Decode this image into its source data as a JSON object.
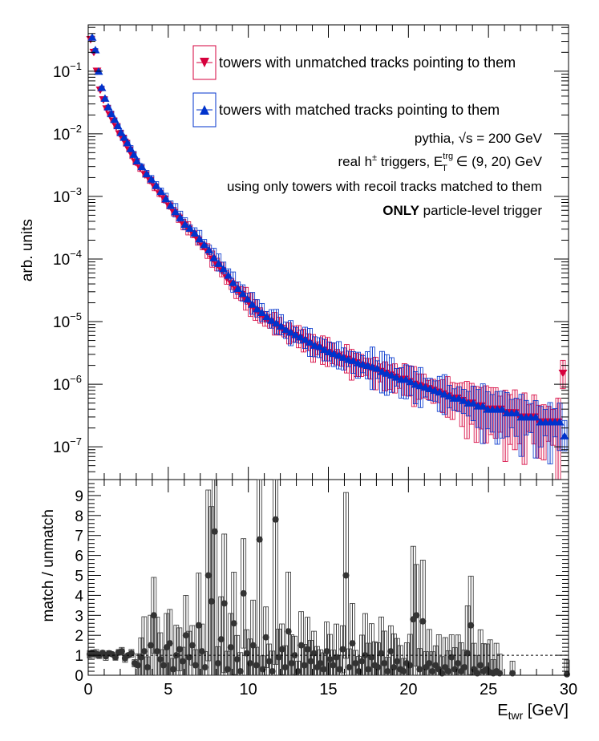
{
  "chart_data": [
    {
      "type": "scatter",
      "ylabel": "arb. units",
      "yscale": "log",
      "xlim": [
        0,
        30
      ],
      "ylim": [
        3e-08,
        0.55
      ],
      "ytick_labels": [
        {
          "base": "10",
          "exp": "−1",
          "value": 0.1
        },
        {
          "base": "10",
          "exp": "−2",
          "value": 0.01
        },
        {
          "base": "10",
          "exp": "−3",
          "value": 0.001
        },
        {
          "base": "10",
          "exp": "−4",
          "value": 0.0001
        },
        {
          "base": "10",
          "exp": "−5",
          "value": 1e-05
        },
        {
          "base": "10",
          "exp": "−6",
          "value": 1e-06
        },
        {
          "base": "10",
          "exp": "−7",
          "value": 1e-07
        }
      ],
      "legend": [
        {
          "label": "towers with unmatched tracks pointing to them",
          "color": "#d6003c",
          "marker": "triangle-down"
        },
        {
          "label": "towers with matched tracks pointing to them",
          "color": "#0033cc",
          "marker": "triangle-up"
        }
      ],
      "annotations": {
        "line1": "pythia, √s = 200 GeV",
        "line2_a": "real h",
        "line2_sup": "±",
        "line2_b": " triggers, E",
        "line2_sup2": "trg",
        "line2_sub": "T",
        "line2_c": " ∈ (9, 20) GeV",
        "line3": "using only towers with recoil tracks matched to them",
        "line4_bold": "ONLY",
        "line4_rest": " particle-level trigger"
      },
      "series": [
        {
          "name": "towers with unmatched tracks pointing to them",
          "color": "#d6003c",
          "marker": "triangle-down",
          "x": [
            0.2,
            0.4,
            0.6,
            0.8,
            1.0,
            1.2,
            1.4,
            1.6,
            1.8,
            2.0,
            2.2,
            2.4,
            2.6,
            2.8,
            3.0,
            3.3,
            3.6,
            3.9,
            4.2,
            4.5,
            4.8,
            5.1,
            5.4,
            5.7,
            6.0,
            6.3,
            6.6,
            6.9,
            7.2,
            7.5,
            7.8,
            8.1,
            8.4,
            8.7,
            9.0,
            9.3,
            9.6,
            9.9,
            10.2,
            10.5,
            10.8,
            11.1,
            11.4,
            11.7,
            12.0,
            12.3,
            12.6,
            12.9,
            13.2,
            13.5,
            13.8,
            14.1,
            14.4,
            14.7,
            15.0,
            15.3,
            15.6,
            15.9,
            16.2,
            16.5,
            16.8,
            17.1,
            17.4,
            17.7,
            18.0,
            18.3,
            18.6,
            18.9,
            19.2,
            19.5,
            19.8,
            20.1,
            20.4,
            20.7,
            21.0,
            21.3,
            21.6,
            21.9,
            22.2,
            22.5,
            22.8,
            23.1,
            23.4,
            23.7,
            24.0,
            24.3,
            24.6,
            24.9,
            25.2,
            25.5,
            25.8,
            26.1,
            26.4,
            26.7,
            27.0,
            27.3,
            27.6,
            27.9,
            28.2,
            28.5,
            28.8,
            29.1,
            29.4,
            29.7
          ],
          "y": [
            0.32,
            0.2,
            0.1,
            0.05,
            0.035,
            0.025,
            0.02,
            0.016,
            0.013,
            0.01,
            0.0085,
            0.007,
            0.0055,
            0.0045,
            0.0035,
            0.0028,
            0.0022,
            0.0018,
            0.0014,
            0.0011,
            0.0009,
            0.0007,
            0.00055,
            0.00045,
            0.00035,
            0.0003,
            0.00025,
            0.0002,
            0.00016,
            0.00013,
            0.0001,
            8e-05,
            6.5e-05,
            5e-05,
            4e-05,
            3.2e-05,
            2.7e-05,
            2.2e-05,
            1.8e-05,
            1.5e-05,
            1.3e-05,
            1.1e-05,
            1e-05,
            9e-06,
            8e-06,
            7e-06,
            6.5e-06,
            6e-06,
            5.5e-06,
            5e-06,
            4.5e-06,
            4e-06,
            3.8e-06,
            3.5e-06,
            3.2e-06,
            3e-06,
            2.8e-06,
            2.6e-06,
            2.5e-06,
            2.3e-06,
            2.2e-06,
            2e-06,
            1.9e-06,
            1.8e-06,
            1.7e-06,
            1.6e-06,
            1.5e-06,
            1.4e-06,
            1.3e-06,
            1.2e-06,
            1.2e-06,
            1.1e-06,
            1e-06,
            9.5e-07,
            9e-07,
            8.5e-07,
            8e-07,
            7.5e-07,
            7e-07,
            6.5e-07,
            6e-07,
            6e-07,
            5.5e-07,
            5e-07,
            5e-07,
            4.5e-07,
            4.5e-07,
            4e-07,
            4e-07,
            4e-07,
            4e-07,
            3.5e-07,
            3.5e-07,
            3.5e-07,
            3e-07,
            3e-07,
            3e-07,
            3e-07,
            2.5e-07,
            2.5e-07,
            2.5e-07,
            2.5e-07,
            2.5e-07,
            1.5e-06
          ]
        },
        {
          "name": "towers with matched tracks pointing to them",
          "color": "#0033cc",
          "marker": "triangle-up",
          "x": [
            0.2,
            0.4,
            0.6,
            0.8,
            1.0,
            1.2,
            1.4,
            1.6,
            1.8,
            2.0,
            2.2,
            2.4,
            2.6,
            2.8,
            3.0,
            3.3,
            3.6,
            3.9,
            4.2,
            4.5,
            4.8,
            5.1,
            5.4,
            5.7,
            6.0,
            6.3,
            6.6,
            6.9,
            7.2,
            7.5,
            7.8,
            8.1,
            8.4,
            8.7,
            9.0,
            9.3,
            9.6,
            9.9,
            10.2,
            10.5,
            10.8,
            11.1,
            11.4,
            11.7,
            12.0,
            12.3,
            12.6,
            12.9,
            13.2,
            13.5,
            13.8,
            14.1,
            14.4,
            14.7,
            15.0,
            15.3,
            15.6,
            15.9,
            16.2,
            16.5,
            16.8,
            17.1,
            17.4,
            17.7,
            18.0,
            18.3,
            18.6,
            18.9,
            19.2,
            19.5,
            19.8,
            20.1,
            20.4,
            20.7,
            21.0,
            21.3,
            21.6,
            21.9,
            22.2,
            22.5,
            22.8,
            23.1,
            23.4,
            23.7,
            24.0,
            24.3,
            24.6,
            24.9,
            25.2,
            25.5,
            25.8,
            26.1,
            26.4,
            26.7,
            27.0,
            27.3,
            27.6,
            27.9,
            28.2,
            28.5,
            28.8,
            29.1,
            29.4,
            29.7
          ],
          "y": [
            0.35,
            0.22,
            0.1,
            0.055,
            0.037,
            0.027,
            0.021,
            0.017,
            0.0135,
            0.0105,
            0.0088,
            0.0072,
            0.0058,
            0.0047,
            0.0037,
            0.003,
            0.0023,
            0.0019,
            0.0015,
            0.0012,
            0.00092,
            0.00072,
            0.00057,
            0.00046,
            0.00036,
            0.00031,
            0.00026,
            0.00021,
            0.00017,
            0.00014,
            0.000105,
            8.5e-05,
            7e-05,
            5.5e-05,
            4.2e-05,
            3.4e-05,
            2.8e-05,
            2.3e-05,
            1.9e-05,
            1.6e-05,
            1.4e-05,
            1.2e-05,
            1.05e-05,
            9.5e-06,
            8.5e-06,
            7.5e-06,
            6.8e-06,
            6.2e-06,
            5.7e-06,
            5.2e-06,
            4.7e-06,
            4.2e-06,
            4e-06,
            3.6e-06,
            3.3e-06,
            3.1e-06,
            2.9e-06,
            2.7e-06,
            2.5e-06,
            2.4e-06,
            2.2e-06,
            2.1e-06,
            2e-06,
            1.9e-06,
            1.8e-06,
            1.6e-06,
            1.5e-06,
            1.4e-06,
            1.3e-06,
            1.2e-06,
            1.2e-06,
            1.1e-06,
            1e-06,
            9.5e-07,
            9e-07,
            8.5e-07,
            8e-07,
            7.5e-07,
            7e-07,
            6.5e-07,
            6e-07,
            6e-07,
            5.5e-07,
            5e-07,
            5e-07,
            4.5e-07,
            4.5e-07,
            4e-07,
            4e-07,
            4e-07,
            4e-07,
            3.5e-07,
            3.5e-07,
            3.5e-07,
            3e-07,
            3e-07,
            3e-07,
            3e-07,
            2.5e-07,
            2.5e-07,
            2.5e-07,
            2.5e-07,
            2.5e-07,
            1.5e-07
          ]
        }
      ]
    },
    {
      "type": "scatter",
      "ylabel": "match / unmatch",
      "xlabel_main": "E",
      "xlabel_sub": "twr",
      "xlabel_unit": " [GeV]",
      "xlim": [
        0,
        30
      ],
      "ylim": [
        0,
        9.8
      ],
      "xticks": [
        "0",
        "5",
        "10",
        "15",
        "20",
        "25",
        "30"
      ],
      "yticks": [
        "0",
        "1",
        "2",
        "3",
        "4",
        "5",
        "6",
        "7",
        "8",
        "9"
      ],
      "reference_line": 1,
      "series": [
        {
          "color": "#333333",
          "marker": "circle",
          "x": [
            0.1,
            0.3,
            0.5,
            0.7,
            0.9,
            1.1,
            1.3,
            1.5,
            1.7,
            1.9,
            2.1,
            2.3,
            2.5,
            2.7,
            2.9,
            3.1,
            3.3,
            3.5,
            3.7,
            3.9,
            4.1,
            4.3,
            4.5,
            4.7,
            4.9,
            5.1,
            5.3,
            5.5,
            5.7,
            5.9,
            6.1,
            6.3,
            6.5,
            6.7,
            6.9,
            7.1,
            7.3,
            7.5,
            7.7,
            7.9,
            8.1,
            8.3,
            8.5,
            8.7,
            8.9,
            9.1,
            9.3,
            9.5,
            9.7,
            9.9,
            10.1,
            10.3,
            10.5,
            10.7,
            10.9,
            11.1,
            11.3,
            11.5,
            11.7,
            11.9,
            12.1,
            12.3,
            12.5,
            12.7,
            12.9,
            13.1,
            13.3,
            13.5,
            13.7,
            13.9,
            14.1,
            14.3,
            14.5,
            14.7,
            14.9,
            15.1,
            15.3,
            15.5,
            15.7,
            15.9,
            16.1,
            16.3,
            16.5,
            16.7,
            16.9,
            17.1,
            17.3,
            17.5,
            17.7,
            17.9,
            18.1,
            18.3,
            18.5,
            18.7,
            18.9,
            19.1,
            19.3,
            19.5,
            19.7,
            19.9,
            20.1,
            20.3,
            20.5,
            20.7,
            20.9,
            21.1,
            21.3,
            21.5,
            21.7,
            21.9,
            22.1,
            22.3,
            22.5,
            22.7,
            22.9,
            23.1,
            23.3,
            23.5,
            23.7,
            23.9,
            24.1,
            24.3,
            24.5,
            24.7,
            24.9,
            25.1,
            25.3,
            25.5,
            25.7,
            26.5,
            29.9
          ],
          "y": [
            1.05,
            1.1,
            1.08,
            1.0,
            1.12,
            0.95,
            1.1,
            1.05,
            0.9,
            1.15,
            1.2,
            0.85,
            1.0,
            1.1,
            0.6,
            0.5,
            0.9,
            1.2,
            0.4,
            1.5,
            3.0,
            1.2,
            0.8,
            0.5,
            1.4,
            1.6,
            0.3,
            1.0,
            1.3,
            0.7,
            2.0,
            0.9,
            1.5,
            0.5,
            2.5,
            1.2,
            0.4,
            5.0,
            3.7,
            7.2,
            0.6,
            1.8,
            3.6,
            0.3,
            1.4,
            2.6,
            0.8,
            0.2,
            4.1,
            1.1,
            0.6,
            1.5,
            0.5,
            6.8,
            0.3,
            1.9,
            0.7,
            0.2,
            7.8,
            0.9,
            1.3,
            0.4,
            2.2,
            0.6,
            1.0,
            0.2,
            1.5,
            0.5,
            1.3,
            0.7,
            1.1,
            0.4,
            0.6,
            0.3,
            1.2,
            0.8,
            0.5,
            0.9,
            0.3,
            1.3,
            5.0,
            0.4,
            1.6,
            0.6,
            0.2,
            0.7,
            1.0,
            0.3,
            0.9,
            0.5,
            0.4,
            1.1,
            0.6,
            0.2,
            1.2,
            0.4,
            0.7,
            0.3,
            0.2,
            0.6,
            0.5,
            2.8,
            3.0,
            0.3,
            2.7,
            0.4,
            0.6,
            0.2,
            0.5,
            0.3,
            0.1,
            0.4,
            0.2,
            0.9,
            0.3,
            0.6,
            0.2,
            0.4,
            1.1,
            2.5,
            0.3,
            0.1,
            0.5,
            0.2,
            0.3,
            0.15,
            0.1,
            0.2,
            0.1,
            0.1,
            0.05
          ]
        }
      ]
    }
  ]
}
